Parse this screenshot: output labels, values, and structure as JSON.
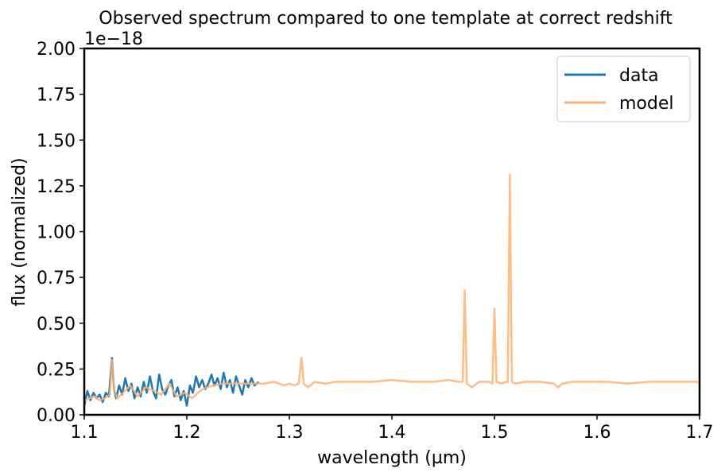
{
  "chart_data": {
    "type": "line",
    "title": "Observed spectrum compared to one template at correct redshift",
    "xlabel": "wavelength (µm)",
    "ylabel": "flux (normalized)",
    "offset_label": "1e−18",
    "xlim": [
      1.1,
      1.7
    ],
    "ylim": [
      0.0,
      2.0
    ],
    "y_scale_exponent": -18,
    "xticks": [
      "1.1",
      "1.2",
      "1.3",
      "1.4",
      "1.5",
      "1.6",
      "1.7"
    ],
    "yticks": [
      "0.00",
      "0.25",
      "0.50",
      "0.75",
      "1.00",
      "1.25",
      "1.50",
      "1.75",
      "2.00"
    ],
    "grid": false,
    "legend_position": "top-right",
    "series": [
      {
        "name": "data",
        "color": "#1f77b4",
        "x": [
          1.1,
          1.103,
          1.106,
          1.109,
          1.112,
          1.115,
          1.118,
          1.121,
          1.124,
          1.127,
          1.129,
          1.131,
          1.134,
          1.137,
          1.14,
          1.143,
          1.146,
          1.149,
          1.152,
          1.155,
          1.158,
          1.161,
          1.164,
          1.167,
          1.17,
          1.173,
          1.176,
          1.179,
          1.182,
          1.185,
          1.188,
          1.191,
          1.194,
          1.197,
          1.2,
          1.203,
          1.206,
          1.209,
          1.212,
          1.215,
          1.218,
          1.221,
          1.224,
          1.227,
          1.23,
          1.233,
          1.236,
          1.239,
          1.242,
          1.245,
          1.248,
          1.251,
          1.254,
          1.257,
          1.26,
          1.263,
          1.266,
          1.27
        ],
        "y": [
          0.05,
          0.13,
          0.08,
          0.12,
          0.09,
          0.11,
          0.07,
          0.12,
          0.1,
          0.31,
          0.14,
          0.09,
          0.16,
          0.11,
          0.2,
          0.13,
          0.17,
          0.09,
          0.15,
          0.1,
          0.18,
          0.12,
          0.21,
          0.13,
          0.09,
          0.22,
          0.14,
          0.11,
          0.16,
          0.19,
          0.1,
          0.15,
          0.08,
          0.13,
          0.05,
          0.16,
          0.12,
          0.21,
          0.15,
          0.19,
          0.14,
          0.17,
          0.22,
          0.16,
          0.2,
          0.14,
          0.23,
          0.15,
          0.19,
          0.12,
          0.21,
          0.16,
          0.11,
          0.19,
          0.15,
          0.2,
          0.16,
          0.18
        ]
      },
      {
        "name": "model",
        "color": "#ffb06e",
        "x": [
          1.1,
          1.105,
          1.11,
          1.115,
          1.12,
          1.125,
          1.127,
          1.129,
          1.132,
          1.138,
          1.145,
          1.152,
          1.16,
          1.168,
          1.175,
          1.183,
          1.19,
          1.198,
          1.205,
          1.215,
          1.225,
          1.235,
          1.245,
          1.255,
          1.265,
          1.275,
          1.285,
          1.295,
          1.3,
          1.305,
          1.309,
          1.312,
          1.314,
          1.318,
          1.325,
          1.335,
          1.345,
          1.36,
          1.38,
          1.4,
          1.42,
          1.44,
          1.455,
          1.465,
          1.469,
          1.471,
          1.473,
          1.478,
          1.485,
          1.495,
          1.498,
          1.5,
          1.502,
          1.507,
          1.511,
          1.513,
          1.515,
          1.517,
          1.52,
          1.53,
          1.545,
          1.558,
          1.562,
          1.566,
          1.575,
          1.59,
          1.61,
          1.63,
          1.65,
          1.67,
          1.69,
          1.7
        ],
        "y": [
          0.08,
          0.09,
          0.1,
          0.08,
          0.09,
          0.11,
          0.3,
          0.14,
          0.09,
          0.12,
          0.16,
          0.1,
          0.15,
          0.13,
          0.11,
          0.17,
          0.1,
          0.12,
          0.09,
          0.14,
          0.16,
          0.17,
          0.17,
          0.17,
          0.17,
          0.17,
          0.18,
          0.16,
          0.17,
          0.16,
          0.17,
          0.31,
          0.17,
          0.15,
          0.18,
          0.17,
          0.18,
          0.18,
          0.18,
          0.19,
          0.18,
          0.18,
          0.19,
          0.18,
          0.18,
          0.68,
          0.17,
          0.15,
          0.18,
          0.18,
          0.17,
          0.58,
          0.18,
          0.17,
          0.18,
          0.18,
          1.31,
          0.18,
          0.17,
          0.18,
          0.18,
          0.17,
          0.15,
          0.17,
          0.18,
          0.18,
          0.18,
          0.17,
          0.18,
          0.18,
          0.18,
          0.18
        ]
      }
    ]
  }
}
